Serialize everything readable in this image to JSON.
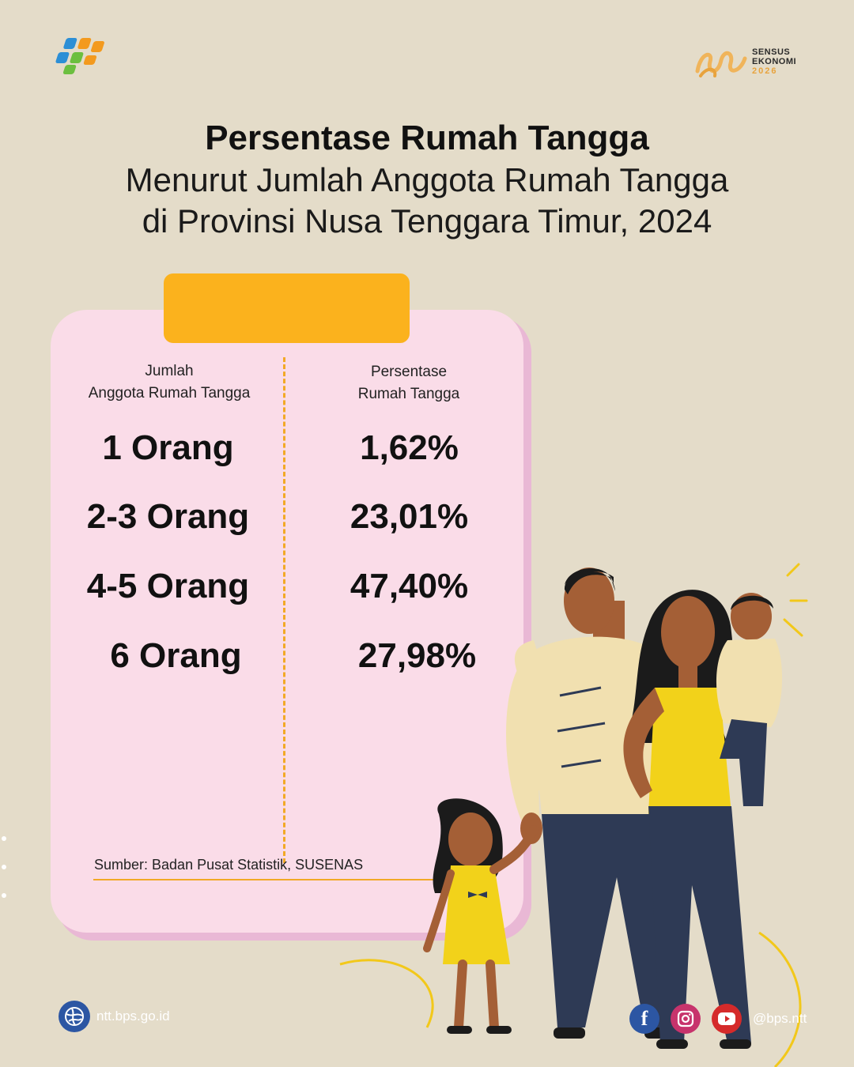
{
  "header": {
    "title": "Persentase Rumah Tangga",
    "subtitle_line1": "Menurut Jumlah Anggota Rumah Tangga",
    "subtitle_line2": "di Provinsi Nusa Tenggara Timur, 2024",
    "logo_left": "bps-logo",
    "logo_right": {
      "line1": "SENSUS",
      "line2": "EKONOMI",
      "line3": "2026"
    }
  },
  "table": {
    "col1_header_line1": "Jumlah",
    "col1_header_line2": "Anggota Rumah Tangga",
    "col2_header_line1": "Persentase",
    "col2_header_line2": "Rumah Tangga",
    "rows": [
      {
        "label": "1 Orang",
        "value": "1,62%"
      },
      {
        "label": "2-3 Orang",
        "value": "23,01%"
      },
      {
        "label": "4-5 Orang",
        "value": "47,40%"
      },
      {
        "label": "6 Orang",
        "value": "27,98%"
      }
    ],
    "source": "Sumber: Badan Pusat Statistik, SUSENAS"
  },
  "footer": {
    "website": "ntt.bps.go.id",
    "social_handle": "@bps.ntt",
    "icons": [
      "globe-icon",
      "facebook-icon",
      "instagram-icon",
      "youtube-icon"
    ]
  },
  "colors": {
    "background": "#e4dcc9",
    "card": "#fadce8",
    "card_shadow": "#e9b8d5",
    "tab": "#fbb21d",
    "accent_line": "#f2a926",
    "brand_blue": "#2c56a3"
  }
}
